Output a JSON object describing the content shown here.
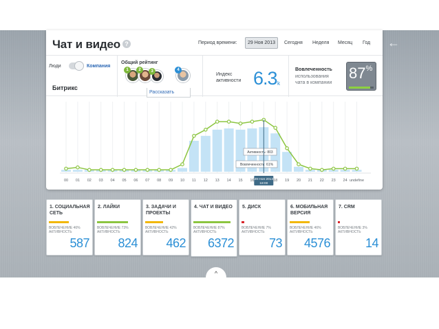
{
  "header": {
    "title": "Чат и видео",
    "help_label": "?",
    "period_label": "Период времени:",
    "selected_date": "29 Ноя 2013",
    "periods": [
      "Сегодня",
      "Неделя",
      "Месяц",
      "Год"
    ],
    "back_icon": "arrow-left-icon"
  },
  "filters": {
    "people_label": "Люди",
    "company_label": "Компания",
    "company_name": "Битрикс",
    "rating_label": "Общий рейтинг",
    "ranks": [
      "1",
      "2",
      "3",
      "4"
    ],
    "more": "• • •"
  },
  "index": {
    "label_line1": "Индекс",
    "label_line2": "активности",
    "value": "6.3",
    "unit": "k"
  },
  "engagement": {
    "title": "Вовлеченность",
    "sub_line1": "использования",
    "sub_line2": "чата в компании",
    "value": "87",
    "unit": "%",
    "fill_fraction": 0.87
  },
  "chart_data": {
    "type": "line",
    "x": [
      "00",
      "01",
      "02",
      "03",
      "04",
      "05",
      "06",
      "07",
      "08",
      "09",
      "10",
      "11",
      "12",
      "13",
      "14",
      "15",
      "16",
      "17",
      "18",
      "19",
      "20",
      "21",
      "22",
      "23",
      "24",
      "undefine"
    ],
    "series": [
      {
        "values": [
          5,
          7,
          3,
          3,
          3,
          3,
          3,
          3,
          3,
          3,
          12,
          58,
          68,
          81,
          81,
          78,
          81,
          84,
          71,
          38,
          12,
          5,
          3,
          5,
          5,
          5
        ]
      },
      {
        "values": [
          3,
          3,
          3,
          3,
          3,
          3,
          3,
          3,
          3,
          3,
          6,
          50,
          58,
          68,
          70,
          68,
          70,
          72,
          62,
          32,
          8,
          3,
          3,
          3,
          3,
          3
        ]
      }
    ],
    "ylim": [
      0,
      100
    ],
    "tooltips": [
      {
        "text": "Активность: 803"
      },
      {
        "text": "Вовлеченность: 61%"
      },
      {
        "text_line1": "29 Ноя 2013",
        "text_line2": "18:00"
      }
    ],
    "colors": {
      "line": "#8cc540",
      "bars": "#c4e3f6",
      "marker": "#3e6a86"
    }
  },
  "cards": [
    {
      "title": "1. СОЦИАЛЬНАЯ СЕТЬ",
      "engage": "ВОВЛЕЧЕНИЕ 46%",
      "activity": "АКТИВНОСТЬ",
      "value": "587",
      "bar_color": "#f2b705",
      "bar_fraction": 0.46
    },
    {
      "title": "2. ЛАЙКИ",
      "engage": "ВОВЛЕЧЕНИЕ 73%",
      "activity": "АКТИВНОСТЬ",
      "value": "824",
      "bar_color": "#8cc540",
      "bar_fraction": 0.73
    },
    {
      "title": "3. ЗАДАЧИ И ПРОЕКТЫ",
      "engage": "ВОВЛЕЧЕНИЕ 42%",
      "activity": "АКТИВНОСТЬ",
      "value": "462",
      "bar_color": "#f2b705",
      "bar_fraction": 0.42
    },
    {
      "title": "4. ЧАТ И ВИДЕО",
      "engage": "ВОВЛЕЧЕНИЕ 87%",
      "activity": "АКТИВНОСТЬ",
      "value": "6372",
      "bar_color": "#8cc540",
      "bar_fraction": 0.87
    },
    {
      "title": "5. ДИСК",
      "engage": "ВОВЛЕЧЕНИЕ 7%",
      "activity": "АКТИВНОСТЬ",
      "value": "73",
      "bar_color": "#d9262b",
      "bar_fraction": 0.07
    },
    {
      "title": "6. МОБИЛЬНАЯ ВЕРСИЯ",
      "engage": "ВОВЛЕЧЕНИЕ 46%",
      "activity": "АКТИВНОСТЬ",
      "value": "4576",
      "bar_color": "#f2b705",
      "bar_fraction": 0.46
    },
    {
      "title": "7. CRM",
      "engage": "ВОВЛЕЧЕНИЕ 3%",
      "activity": "АКТИВНОСТЬ",
      "value": "14",
      "bar_color": "#d9262b",
      "bar_fraction": 0.03
    }
  ],
  "tell_link": "Рассказать",
  "toggle_icon": "chevron-up-icon",
  "toggle_glyph": "^"
}
